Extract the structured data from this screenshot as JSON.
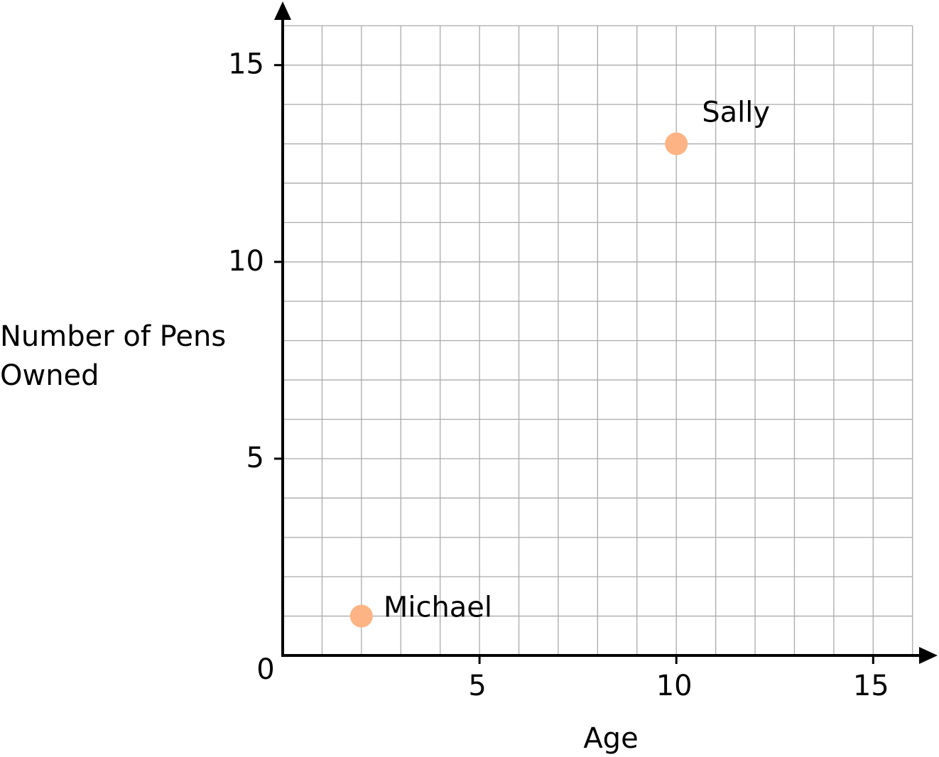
{
  "chart_data": {
    "type": "scatter",
    "x_label": "Age",
    "y_label": "Number of Pens Owned",
    "x": [
      2,
      10
    ],
    "values": [
      1,
      13
    ],
    "point_labels": [
      "Michael",
      "Sally"
    ],
    "color": "#fdb383",
    "xlim": [
      0,
      16
    ],
    "ylim": [
      0,
      16
    ],
    "xticks": [
      5,
      10,
      15
    ],
    "yticks": [
      0,
      5,
      10,
      15
    ],
    "grid": true,
    "minor_grid_step": 1
  }
}
